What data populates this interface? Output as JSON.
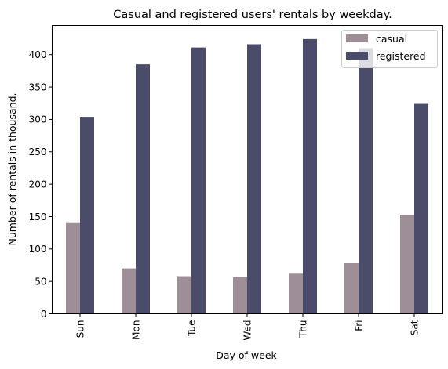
{
  "chart_data": {
    "type": "bar",
    "title": "Casual and registered users' rentals by weekday.",
    "xlabel": "Day of week",
    "ylabel": "Number of rentals in thousand.",
    "categories": [
      "Sun",
      "Mon",
      "Tue",
      "Wed",
      "Thu",
      "Fri",
      "Sat"
    ],
    "series": [
      {
        "name": "casual",
        "color": "#9e8e98",
        "values": [
          140,
          70,
          58,
          57,
          62,
          78,
          153
        ]
      },
      {
        "name": "registered",
        "color": "#4a4c6a",
        "values": [
          304,
          385,
          411,
          416,
          424,
          410,
          324
        ]
      }
    ],
    "ylim": [
      0,
      445
    ],
    "yticks": [
      0,
      50,
      100,
      150,
      200,
      250,
      300,
      350,
      400
    ],
    "legend_position": "top-right",
    "grid": false
  }
}
